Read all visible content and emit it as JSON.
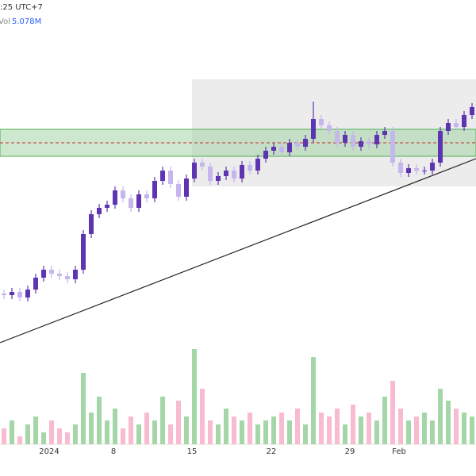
{
  "chart_data": {
    "type": "candlestick",
    "header": ":25 UTC+7",
    "volume_label": "Vol",
    "volume_value": "5.078M",
    "x_labels": [
      "2024",
      "8",
      "15",
      "22",
      "29",
      "Feb"
    ],
    "ylim": [
      0,
      450
    ],
    "vol_ylim": [
      0,
      140
    ],
    "up_color": "#5e35b1",
    "down_color": "#c5b6ec",
    "vol_up_color": "#a5d6a7",
    "vol_down_color": "#f8bbd0",
    "open": [
      80,
      78,
      82,
      75,
      85,
      100,
      110,
      105,
      102,
      98,
      110,
      155,
      180,
      188,
      192,
      210,
      200,
      188,
      205,
      200,
      222,
      235,
      218,
      202,
      225,
      245,
      240,
      222,
      228,
      235,
      225,
      242,
      235,
      250,
      260,
      265,
      258,
      270,
      265,
      275,
      300,
      292,
      285,
      270,
      280,
      265,
      272,
      268,
      280,
      285,
      245,
      232,
      238,
      235,
      235,
      245,
      285,
      295,
      290,
      305
    ],
    "close": [
      78,
      82,
      75,
      85,
      100,
      110,
      105,
      102,
      98,
      110,
      155,
      180,
      188,
      192,
      210,
      200,
      188,
      205,
      200,
      222,
      235,
      218,
      202,
      225,
      245,
      240,
      222,
      228,
      235,
      225,
      242,
      235,
      250,
      260,
      265,
      258,
      270,
      265,
      275,
      300,
      292,
      285,
      270,
      280,
      265,
      272,
      268,
      280,
      285,
      245,
      232,
      238,
      235,
      235,
      245,
      285,
      295,
      290,
      305,
      315
    ],
    "high": [
      85,
      87,
      87,
      90,
      105,
      115,
      115,
      110,
      107,
      115,
      160,
      185,
      193,
      197,
      215,
      215,
      205,
      210,
      210,
      227,
      240,
      240,
      223,
      230,
      250,
      250,
      245,
      233,
      240,
      240,
      247,
      247,
      255,
      265,
      270,
      270,
      275,
      275,
      280,
      322,
      305,
      297,
      290,
      285,
      285,
      277,
      277,
      285,
      290,
      290,
      250,
      243,
      243,
      240,
      250,
      290,
      300,
      300,
      310,
      320
    ],
    "low": [
      73,
      73,
      70,
      70,
      80,
      95,
      100,
      97,
      93,
      93,
      105,
      150,
      175,
      183,
      187,
      195,
      183,
      183,
      195,
      195,
      217,
      213,
      197,
      197,
      220,
      235,
      217,
      217,
      223,
      220,
      220,
      230,
      230,
      245,
      255,
      253,
      253,
      260,
      260,
      270,
      287,
      280,
      265,
      265,
      260,
      260,
      263,
      263,
      275,
      240,
      227,
      227,
      230,
      230,
      230,
      240,
      280,
      285,
      285,
      300
    ],
    "volume": [
      20,
      30,
      10,
      25,
      35,
      15,
      30,
      20,
      15,
      25,
      90,
      40,
      60,
      30,
      45,
      20,
      35,
      25,
      40,
      30,
      60,
      25,
      55,
      35,
      120,
      70,
      30,
      25,
      45,
      35,
      30,
      40,
      25,
      30,
      35,
      40,
      30,
      45,
      25,
      110,
      40,
      35,
      45,
      25,
      50,
      35,
      40,
      30,
      60,
      80,
      45,
      30,
      35,
      40,
      30,
      70,
      55,
      45,
      40,
      35
    ]
  }
}
